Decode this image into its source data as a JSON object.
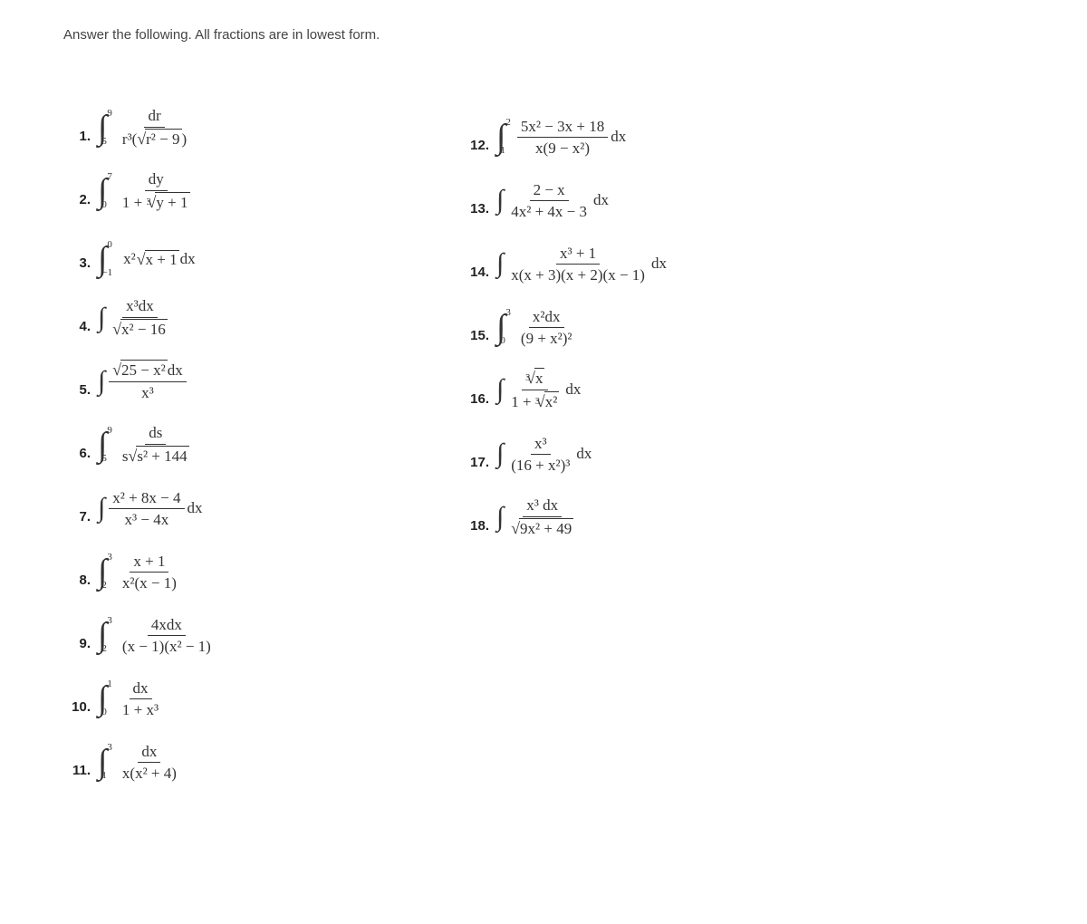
{
  "instruction": "Answer the following. All fractions are in lowest form.",
  "style": {
    "background": "#ffffff",
    "text_color": "#333333",
    "instruction_fontsize": 15,
    "number_fontsize": 15,
    "math_fontsize": 17,
    "math_font": "Cambria Math, STIX, Times New Roman, serif",
    "fraction_bar_color": "#333333"
  },
  "left": [
    {
      "n": "1.",
      "lower": "5",
      "upper": "9",
      "nu": "dr",
      "de_pre": "r³(",
      "de_rad": "r² − 9",
      "de_post": ")"
    },
    {
      "n": "2.",
      "lower": "0",
      "upper": "7",
      "nu": "dy",
      "de_pre": "1 + ",
      "de_rootidx": "3",
      "de_rad": "y + 1"
    },
    {
      "n": "3.",
      "lower": "−1",
      "upper": "0",
      "inline_pre": "x²",
      "inline_rad": "x + 1",
      "inline_post": "dx"
    },
    {
      "n": "4.",
      "nu": "x³dx",
      "de_rad": "x² − 16"
    },
    {
      "n": "5.",
      "nu_rad": "25 − x²",
      "nu_post": "dx",
      "de": "x³"
    },
    {
      "n": "6.",
      "lower": "5",
      "upper": "9",
      "nu": "ds",
      "de_pre": "s",
      "de_rad": "s² + 144"
    },
    {
      "n": "7.",
      "nu": "x² + 8x − 4",
      "de": "x³ − 4x",
      "post": "dx"
    },
    {
      "n": "8.",
      "lower": "2",
      "upper": "3",
      "nu": "x + 1",
      "de": "x²(x − 1)"
    },
    {
      "n": "9.",
      "lower": "2",
      "upper": "3",
      "nu": "4xdx",
      "de": "(x − 1)(x² − 1)"
    },
    {
      "n": "10.",
      "lower": "0",
      "upper": "1",
      "nu": "dx",
      "de": "1 + x³"
    },
    {
      "n": "11.",
      "lower": "1",
      "upper": "3",
      "nu": "dx",
      "de": "x(x² + 4)"
    }
  ],
  "right": [
    {
      "n": "12.",
      "lower": "1",
      "upper": "2",
      "nu": "5x² − 3x + 18",
      "de": "x(9 − x²)",
      "post": "dx"
    },
    {
      "n": "13.",
      "nu": "2 − x",
      "de": "4x² + 4x − 3",
      "post": "dx"
    },
    {
      "n": "14.",
      "nu": "x³ + 1",
      "de": "x(x + 3)(x + 2)(x − 1)",
      "post": "dx"
    },
    {
      "n": "15.",
      "lower": "0",
      "upper": "3",
      "nu": "x²dx",
      "de": "(9 + x²)²"
    },
    {
      "n": "16.",
      "nu_rootidx": "3",
      "nu_rad": "x",
      "de_pre": "1 + ",
      "de_rootidx": "3",
      "de_rad": "x²",
      "post": "dx"
    },
    {
      "n": "17.",
      "nu": "x³",
      "de": "(16 + x²)³",
      "post": "dx"
    },
    {
      "n": "18.",
      "nu": "x³ dx",
      "de_rad": "9x² + 49"
    }
  ]
}
